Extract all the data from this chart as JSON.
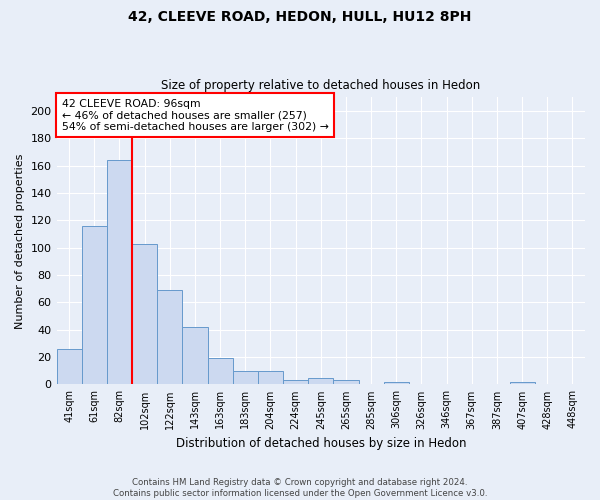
{
  "title1": "42, CLEEVE ROAD, HEDON, HULL, HU12 8PH",
  "title2": "Size of property relative to detached houses in Hedon",
  "xlabel": "Distribution of detached houses by size in Hedon",
  "ylabel": "Number of detached properties",
  "bar_labels": [
    "41sqm",
    "61sqm",
    "82sqm",
    "102sqm",
    "122sqm",
    "143sqm",
    "163sqm",
    "183sqm",
    "204sqm",
    "224sqm",
    "245sqm",
    "265sqm",
    "285sqm",
    "306sqm",
    "326sqm",
    "346sqm",
    "367sqm",
    "387sqm",
    "407sqm",
    "428sqm",
    "448sqm"
  ],
  "bar_values": [
    26,
    116,
    164,
    103,
    69,
    42,
    19,
    10,
    10,
    3,
    5,
    3,
    0,
    2,
    0,
    0,
    0,
    0,
    2,
    0,
    0
  ],
  "bar_color": "#ccd9f0",
  "bar_edge_color": "#6699cc",
  "vline_x_index": 2.5,
  "vline_color": "red",
  "annotation_text": "42 CLEEVE ROAD: 96sqm\n← 46% of detached houses are smaller (257)\n54% of semi-detached houses are larger (302) →",
  "annotation_box_color": "white",
  "annotation_box_edge": "red",
  "ylim": [
    0,
    210
  ],
  "yticks": [
    0,
    20,
    40,
    60,
    80,
    100,
    120,
    140,
    160,
    180,
    200
  ],
  "footer_line1": "Contains HM Land Registry data © Crown copyright and database right 2024.",
  "footer_line2": "Contains public sector information licensed under the Open Government Licence v3.0.",
  "bg_color": "#e8eef8",
  "grid_color": "#ffffff"
}
